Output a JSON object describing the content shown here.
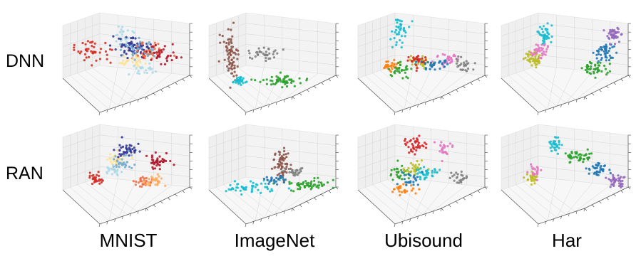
{
  "row_labels": [
    "DNN",
    "RAN"
  ],
  "col_labels": [
    "MNIST",
    "ImageNet",
    "Ubisound",
    "Har"
  ],
  "palette": {
    "dark_red": "#b2182b",
    "red": "#d73027",
    "orange": "#f46d43",
    "light_orange": "#fdae61",
    "pale_yellow": "#fee090",
    "pale_blue": "#abd9e9",
    "light_blue": "#74add1",
    "dark_blue": "#313695",
    "tab_brown": "#8c564b",
    "tab_gray": "#7f7f7f",
    "tab_cyan": "#17becf",
    "tab_green": "#2ca02c",
    "tab_blue": "#1f77b4",
    "tab_orange": "#ff7f0e",
    "tab_olive": "#bcbd22",
    "tab_pink": "#e377c2",
    "tab_red": "#d62728",
    "tab_purple": "#9467bd"
  },
  "chart_data": [
    {
      "type": "scatter",
      "row": "DNN",
      "dataset": "MNIST",
      "projection": "3d",
      "clusters": [
        {
          "color": "#d73027",
          "center": [
            0.18,
            0.1,
            0.55
          ],
          "spread": [
            0.1,
            0.04,
            0.08
          ],
          "n": 45
        },
        {
          "color": "#abd9e9",
          "center": [
            0.45,
            0.05,
            0.8
          ],
          "spread": [
            0.05,
            0.04,
            0.06
          ],
          "n": 25
        },
        {
          "color": "#313695",
          "center": [
            0.55,
            0.1,
            0.6
          ],
          "spread": [
            0.08,
            0.06,
            0.07
          ],
          "n": 70
        },
        {
          "color": "#74add1",
          "center": [
            0.6,
            0.12,
            0.55
          ],
          "spread": [
            0.1,
            0.05,
            0.06
          ],
          "n": 35
        },
        {
          "color": "#f46d43",
          "center": [
            0.7,
            0.2,
            0.55
          ],
          "spread": [
            0.08,
            0.05,
            0.06
          ],
          "n": 35
        },
        {
          "color": "#b2182b",
          "center": [
            0.8,
            0.12,
            0.5
          ],
          "spread": [
            0.08,
            0.05,
            0.07
          ],
          "n": 35
        },
        {
          "color": "#fee090",
          "center": [
            0.5,
            0.3,
            0.42
          ],
          "spread": [
            0.06,
            0.03,
            0.04
          ],
          "n": 25
        },
        {
          "color": "#abd9e9",
          "center": [
            0.62,
            0.3,
            0.3
          ],
          "spread": [
            0.07,
            0.04,
            0.04
          ],
          "n": 20
        }
      ]
    },
    {
      "type": "scatter",
      "row": "DNN",
      "dataset": "ImageNet",
      "projection": "3d",
      "clusters": [
        {
          "color": "#8c564b",
          "center": [
            0.1,
            0.1,
            0.5
          ],
          "spread": [
            0.04,
            0.04,
            0.18
          ],
          "n": 75
        },
        {
          "color": "#7f7f7f",
          "center": [
            0.4,
            0.1,
            0.5
          ],
          "spread": [
            0.08,
            0.04,
            0.05
          ],
          "n": 35
        },
        {
          "color": "#17becf",
          "center": [
            0.12,
            0.55,
            0.22
          ],
          "spread": [
            0.03,
            0.05,
            0.03
          ],
          "n": 30
        },
        {
          "color": "#2ca02c",
          "center": [
            0.5,
            0.6,
            0.22
          ],
          "spread": [
            0.12,
            0.08,
            0.04
          ],
          "n": 55
        }
      ]
    },
    {
      "type": "scatter",
      "row": "DNN",
      "dataset": "Ubisound",
      "projection": "3d",
      "clusters": [
        {
          "color": "#17becf",
          "center": [
            0.3,
            0.05,
            0.85
          ],
          "spread": [
            0.05,
            0.04,
            0.12
          ],
          "n": 40
        },
        {
          "color": "#ff7f0e",
          "center": [
            0.15,
            0.4,
            0.4
          ],
          "spread": [
            0.04,
            0.04,
            0.05
          ],
          "n": 30
        },
        {
          "color": "#2ca02c",
          "center": [
            0.25,
            0.5,
            0.35
          ],
          "spread": [
            0.06,
            0.04,
            0.05
          ],
          "n": 30
        },
        {
          "color": "#bcbd22",
          "center": [
            0.45,
            0.35,
            0.45
          ],
          "spread": [
            0.06,
            0.04,
            0.05
          ],
          "n": 35
        },
        {
          "color": "#e377c2",
          "center": [
            0.7,
            0.3,
            0.45
          ],
          "spread": [
            0.05,
            0.04,
            0.05
          ],
          "n": 30
        },
        {
          "color": "#d62728",
          "center": [
            0.4,
            0.4,
            0.48
          ],
          "spread": [
            0.05,
            0.04,
            0.05
          ],
          "n": 25
        },
        {
          "color": "#7f7f7f",
          "center": [
            0.85,
            0.35,
            0.4
          ],
          "spread": [
            0.05,
            0.04,
            0.05
          ],
          "n": 25
        },
        {
          "color": "#1f77b4",
          "center": [
            0.55,
            0.4,
            0.4
          ],
          "spread": [
            0.07,
            0.04,
            0.05
          ],
          "n": 30
        }
      ]
    },
    {
      "type": "scatter",
      "row": "DNN",
      "dataset": "Har",
      "projection": "3d",
      "clusters": [
        {
          "color": "#bcbd22",
          "center": [
            0.15,
            0.35,
            0.48
          ],
          "spread": [
            0.05,
            0.04,
            0.06
          ],
          "n": 45
        },
        {
          "color": "#e377c2",
          "center": [
            0.22,
            0.38,
            0.62
          ],
          "spread": [
            0.05,
            0.04,
            0.06
          ],
          "n": 35
        },
        {
          "color": "#17becf",
          "center": [
            0.3,
            0.1,
            0.8
          ],
          "spread": [
            0.03,
            0.04,
            0.06
          ],
          "n": 40
        },
        {
          "color": "#2ca02c",
          "center": [
            0.7,
            0.6,
            0.4
          ],
          "spread": [
            0.06,
            0.05,
            0.06
          ],
          "n": 45
        },
        {
          "color": "#1f77b4",
          "center": [
            0.82,
            0.45,
            0.58
          ],
          "spread": [
            0.05,
            0.04,
            0.06
          ],
          "n": 45
        },
        {
          "color": "#9467bd",
          "center": [
            0.92,
            0.2,
            0.8
          ],
          "spread": [
            0.04,
            0.04,
            0.06
          ],
          "n": 40
        }
      ]
    },
    {
      "type": "scatter",
      "row": "RAN",
      "dataset": "MNIST",
      "projection": "3d",
      "clusters": [
        {
          "color": "#d73027",
          "center": [
            0.18,
            0.35,
            0.38
          ],
          "spread": [
            0.03,
            0.04,
            0.04
          ],
          "n": 35
        },
        {
          "color": "#fee090",
          "center": [
            0.4,
            0.1,
            0.6
          ],
          "spread": [
            0.05,
            0.04,
            0.06
          ],
          "n": 30
        },
        {
          "color": "#313695",
          "center": [
            0.5,
            0.05,
            0.72
          ],
          "spread": [
            0.06,
            0.04,
            0.06
          ],
          "n": 40
        },
        {
          "color": "#74add1",
          "center": [
            0.45,
            0.15,
            0.55
          ],
          "spread": [
            0.06,
            0.04,
            0.06
          ],
          "n": 30
        },
        {
          "color": "#b2182b",
          "center": [
            0.78,
            0.1,
            0.55
          ],
          "spread": [
            0.05,
            0.04,
            0.06
          ],
          "n": 40
        },
        {
          "color": "#f46d43",
          "center": [
            0.6,
            0.45,
            0.32
          ],
          "spread": [
            0.05,
            0.04,
            0.04
          ],
          "n": 30
        },
        {
          "color": "#fdae61",
          "center": [
            0.72,
            0.4,
            0.32
          ],
          "spread": [
            0.05,
            0.04,
            0.04
          ],
          "n": 30
        },
        {
          "color": "#abd9e9",
          "center": [
            0.35,
            0.25,
            0.45
          ],
          "spread": [
            0.04,
            0.04,
            0.04
          ],
          "n": 20
        }
      ]
    },
    {
      "type": "scatter",
      "row": "RAN",
      "dataset": "ImageNet",
      "projection": "3d",
      "clusters": [
        {
          "color": "#8c564b",
          "center": [
            0.55,
            0.25,
            0.55
          ],
          "spread": [
            0.04,
            0.04,
            0.12
          ],
          "n": 65
        },
        {
          "color": "#7f7f7f",
          "center": [
            0.65,
            0.35,
            0.45
          ],
          "spread": [
            0.04,
            0.04,
            0.04
          ],
          "n": 25
        },
        {
          "color": "#17becf",
          "center": [
            0.22,
            0.55,
            0.3
          ],
          "spread": [
            0.1,
            0.04,
            0.04
          ],
          "n": 50
        },
        {
          "color": "#2ca02c",
          "center": [
            0.75,
            0.55,
            0.3
          ],
          "spread": [
            0.1,
            0.05,
            0.04
          ],
          "n": 55
        },
        {
          "color": "#1f77b4",
          "center": [
            0.48,
            0.4,
            0.36
          ],
          "spread": [
            0.06,
            0.03,
            0.03
          ],
          "n": 25
        }
      ]
    },
    {
      "type": "scatter",
      "row": "RAN",
      "dataset": "Ubisound",
      "projection": "3d",
      "clusters": [
        {
          "color": "#d62728",
          "center": [
            0.45,
            0.05,
            0.8
          ],
          "spread": [
            0.05,
            0.04,
            0.07
          ],
          "n": 40
        },
        {
          "color": "#e377c2",
          "center": [
            0.7,
            0.1,
            0.72
          ],
          "spread": [
            0.04,
            0.04,
            0.05
          ],
          "n": 25
        },
        {
          "color": "#ff7f0e",
          "center": [
            0.25,
            0.5,
            0.25
          ],
          "spread": [
            0.05,
            0.03,
            0.03
          ],
          "n": 25
        },
        {
          "color": "#2ca02c",
          "center": [
            0.25,
            0.35,
            0.45
          ],
          "spread": [
            0.05,
            0.04,
            0.05
          ],
          "n": 30
        },
        {
          "color": "#bcbd22",
          "center": [
            0.4,
            0.3,
            0.5
          ],
          "spread": [
            0.05,
            0.04,
            0.05
          ],
          "n": 30
        },
        {
          "color": "#17becf",
          "center": [
            0.5,
            0.35,
            0.45
          ],
          "spread": [
            0.06,
            0.04,
            0.05
          ],
          "n": 35
        },
        {
          "color": "#7f7f7f",
          "center": [
            0.8,
            0.4,
            0.38
          ],
          "spread": [
            0.04,
            0.04,
            0.04
          ],
          "n": 25
        },
        {
          "color": "#1f77b4",
          "center": [
            0.35,
            0.3,
            0.35
          ],
          "spread": [
            0.05,
            0.04,
            0.04
          ],
          "n": 25
        }
      ]
    },
    {
      "type": "scatter",
      "row": "RAN",
      "dataset": "Har",
      "projection": "3d",
      "clusters": [
        {
          "color": "#17becf",
          "center": [
            0.4,
            0.05,
            0.8
          ],
          "spread": [
            0.03,
            0.04,
            0.05
          ],
          "n": 35
        },
        {
          "color": "#bcbd22",
          "center": [
            0.15,
            0.4,
            0.42
          ],
          "spread": [
            0.03,
            0.04,
            0.05
          ],
          "n": 30
        },
        {
          "color": "#e377c2",
          "center": [
            0.18,
            0.38,
            0.48
          ],
          "spread": [
            0.03,
            0.03,
            0.04
          ],
          "n": 20
        },
        {
          "color": "#2ca02c",
          "center": [
            0.6,
            0.2,
            0.65
          ],
          "spread": [
            0.05,
            0.04,
            0.05
          ],
          "n": 45
        },
        {
          "color": "#1f77b4",
          "center": [
            0.75,
            0.4,
            0.5
          ],
          "spread": [
            0.05,
            0.04,
            0.05
          ],
          "n": 40
        },
        {
          "color": "#9467bd",
          "center": [
            0.9,
            0.55,
            0.35
          ],
          "spread": [
            0.04,
            0.04,
            0.05
          ],
          "n": 40
        }
      ]
    }
  ]
}
